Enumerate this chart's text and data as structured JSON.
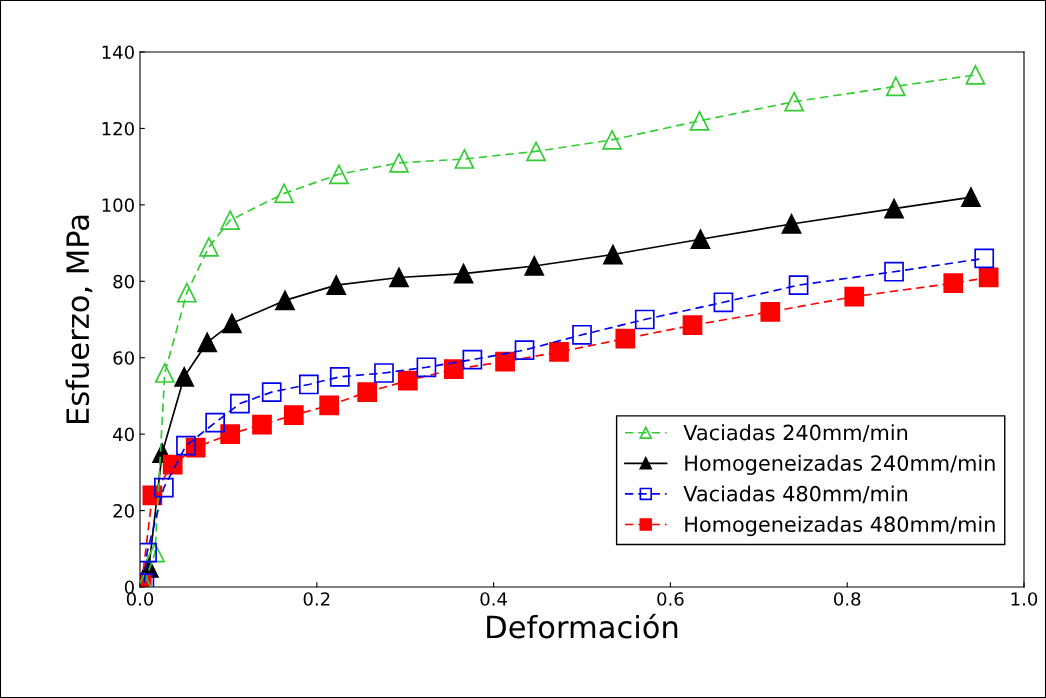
{
  "chart_data": {
    "type": "line",
    "xlabel": "Deformación",
    "ylabel": "Esfuerzo, MPa",
    "xlim": [
      0,
      1.0
    ],
    "ylim": [
      0,
      140
    ],
    "xticks": [
      {
        "value": 0,
        "label": "0.0"
      },
      0.2,
      0.4,
      0.6,
      0.8,
      {
        "value": 1.0,
        "label": "1.0"
      }
    ],
    "yticks": [
      0,
      20,
      40,
      60,
      80,
      100,
      120,
      140
    ],
    "grid": false,
    "legend": "bottom right",
    "series": [
      {
        "name": "Vaciadas 240mm/min",
        "color": "#33cc33",
        "marker": "triangle",
        "line_style": "dashed",
        "x": [
          0.005,
          0.017,
          0.028,
          0.053,
          0.078,
          0.102,
          0.163,
          0.225,
          0.293,
          0.367,
          0.448,
          0.534,
          0.633,
          0.74,
          0.855,
          0.945
        ],
        "values": [
          1,
          9,
          56,
          77,
          89,
          96,
          103,
          108,
          111,
          112,
          114,
          117,
          122,
          127,
          131,
          134
        ]
      },
      {
        "name": "Homogeneizadas 240mm/min",
        "color": "#000000",
        "marker": "triangle",
        "line_style": "solid",
        "x": [
          0.003,
          0.01,
          0.025,
          0.05,
          0.076,
          0.104,
          0.164,
          0.222,
          0.293,
          0.366,
          0.446,
          0.535,
          0.634,
          0.737,
          0.853,
          0.94
        ],
        "values": [
          1,
          5,
          35,
          55,
          64,
          69,
          75,
          79,
          81,
          82,
          84,
          87,
          91,
          95,
          99,
          102
        ]
      },
      {
        "name": "Vaciadas 480mm/min",
        "color": "#0000ee",
        "marker": "square",
        "line_style": "dashed",
        "x": [
          0.005,
          0.008,
          0.027,
          0.052,
          0.085,
          0.113,
          0.149,
          0.191,
          0.226,
          0.276,
          0.324,
          0.376,
          0.435,
          0.5,
          0.571,
          0.66,
          0.745,
          0.853,
          0.955
        ],
        "values": [
          1,
          9,
          26,
          37,
          43,
          48,
          51,
          53,
          55,
          56,
          57.5,
          59.5,
          62,
          66,
          70,
          74.5,
          79,
          82.5,
          86
        ]
      },
      {
        "name": "Homogeneizadas 480mm/min",
        "color": "#ff0000",
        "marker": "square",
        "line_style": "dashed",
        "x": [
          0.002,
          0.014,
          0.037,
          0.063,
          0.102,
          0.138,
          0.174,
          0.214,
          0.257,
          0.303,
          0.355,
          0.413,
          0.474,
          0.549,
          0.625,
          0.713,
          0.808,
          0.92,
          0.96
        ],
        "values": [
          1,
          24,
          32,
          36.5,
          40,
          42.5,
          45,
          47.5,
          51,
          54,
          57,
          59,
          61.5,
          65,
          68.5,
          72,
          76,
          79.5,
          81
        ]
      }
    ]
  }
}
